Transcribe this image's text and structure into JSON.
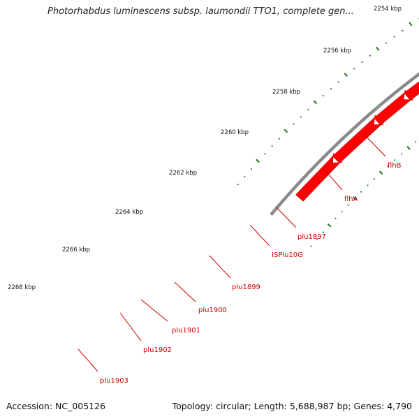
{
  "title": "Photorhabdus luminescens subsp. laumondii TTO1, complete gen...",
  "footer": {
    "accession": "Accession: NC_005126",
    "stats": "Topology: circular; Length: 5,688,987 bp; Genes: 4,790"
  },
  "colors": {
    "backbone": "#8a8a8a",
    "tick": "#2e7d2e",
    "gene": "#ff0000",
    "label": "#cc0000",
    "is_element": "#ff3fa8",
    "flhA": "#2f8f2f",
    "flhB": "#c8ff4a",
    "gray_feature": "#c8c8c8",
    "blue_feature": "#0a10ee"
  },
  "kbp_labels": [
    "2254 kbp",
    "2256 kbp",
    "2258 kbp",
    "2260 kbp",
    "2262 kbp",
    "2264 kbp",
    "2266 kbp",
    "2268 kbp"
  ],
  "gene_labels": [
    "flhB",
    "flhA",
    "plu1897",
    "ISPlu10G",
    "plu1899",
    "plu1900",
    "plu1901",
    "plu1902",
    "plu1903"
  ]
}
